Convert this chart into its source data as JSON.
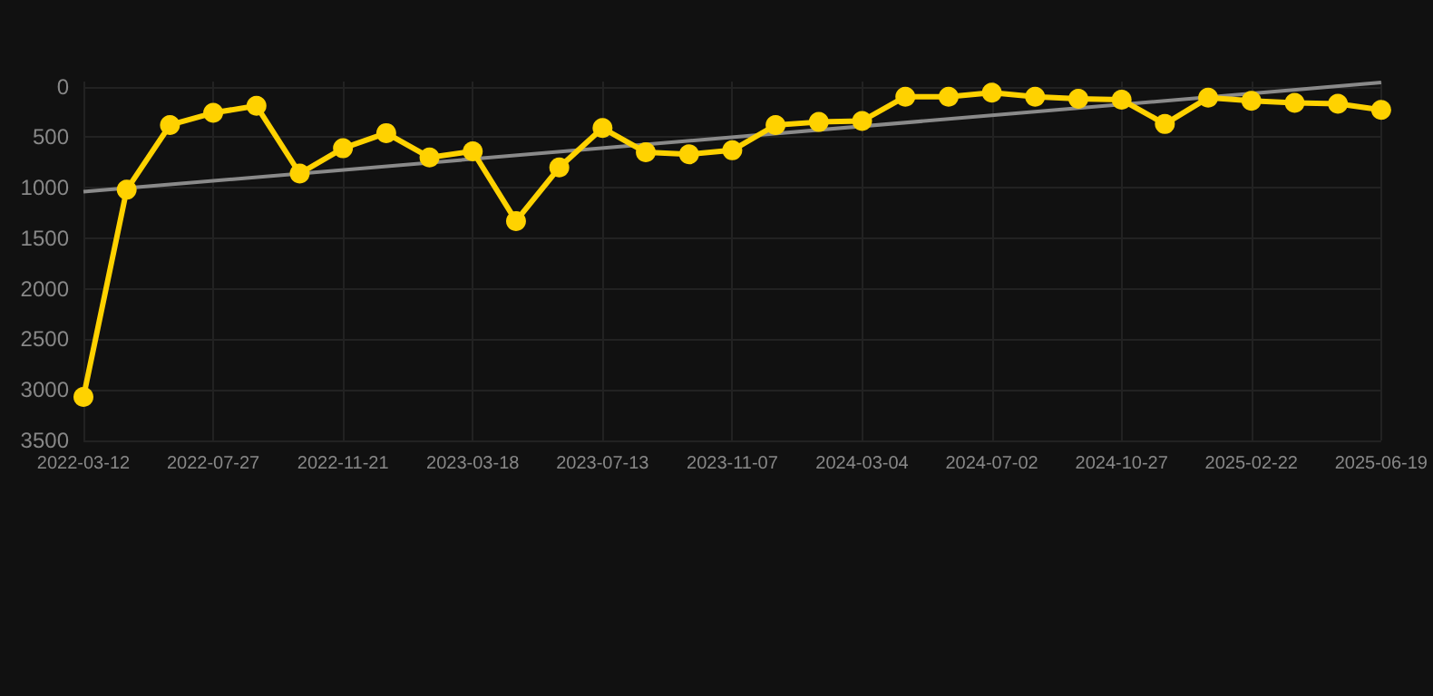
{
  "chart_data": {
    "type": "line",
    "categories": [
      "2022-03-12",
      null,
      null,
      "2022-07-27",
      null,
      null,
      "2022-11-21",
      null,
      null,
      "2023-03-18",
      null,
      null,
      "2023-07-13",
      null,
      null,
      "2023-11-07",
      null,
      null,
      "2024-03-04",
      null,
      null,
      "2024-07-02",
      null,
      null,
      "2024-10-27",
      null,
      null,
      "2025-02-22",
      null,
      null,
      "2025-06-19"
    ],
    "series": [
      {
        "color": "#ffd200",
        "marker": "circle",
        "values": [
          3070,
          1020,
          380,
          260,
          190,
          860,
          610,
          460,
          700,
          640,
          1330,
          800,
          410,
          650,
          670,
          630,
          380,
          350,
          340,
          100,
          100,
          60,
          100,
          120,
          130,
          370,
          110,
          140,
          160,
          170,
          230
        ]
      },
      {
        "color": "#8a8a8a",
        "marker": "none",
        "values": [
          1040,
          null,
          null,
          null,
          null,
          null,
          null,
          null,
          null,
          null,
          null,
          null,
          null,
          null,
          null,
          null,
          null,
          null,
          null,
          null,
          null,
          null,
          null,
          null,
          null,
          null,
          null,
          null,
          null,
          null,
          -40
        ]
      }
    ],
    "ylim": [
      3500,
      -50
    ],
    "yticks": [
      0,
      500,
      1000,
      1500,
      2000,
      2500,
      3000,
      3500
    ],
    "grid": true
  }
}
